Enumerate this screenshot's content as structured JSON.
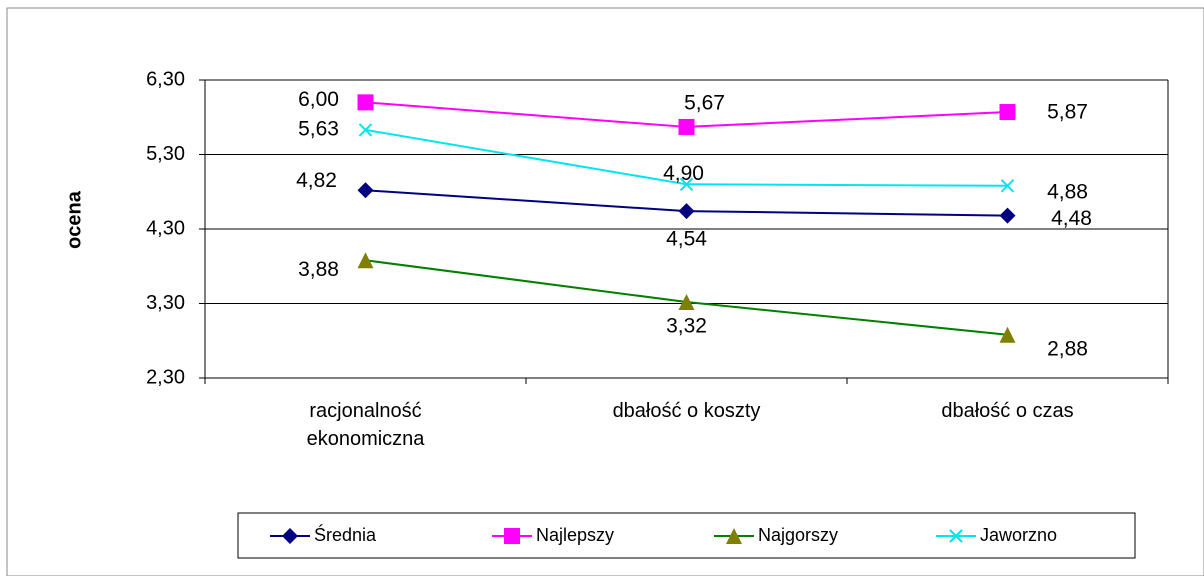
{
  "chart_data": {
    "type": "line",
    "y_label": "ocena",
    "categories": [
      "racjonalność\nekonomiczna",
      "dbałość o koszty",
      "dbałość o czas"
    ],
    "ylim": [
      2.3,
      6.3
    ],
    "yticks": [
      {
        "value": 2.3,
        "label": "2,30"
      },
      {
        "value": 3.3,
        "label": "3,30"
      },
      {
        "value": 4.3,
        "label": "4,30"
      },
      {
        "value": 5.3,
        "label": "5,30"
      },
      {
        "value": 6.3,
        "label": "6,30"
      }
    ],
    "grid": true,
    "legend": "bottom",
    "series": [
      {
        "name": "Średnia",
        "color": "#000080",
        "marker": "diamond",
        "marker_color": "#000080",
        "values": [
          4.82,
          4.54,
          4.48
        ],
        "value_labels": [
          "4,82",
          "4,54",
          "4,48"
        ]
      },
      {
        "name": "Najlepszy",
        "color": "#ff00ff",
        "marker": "square",
        "marker_color": "#ff00ff",
        "values": [
          6.0,
          5.67,
          5.87
        ],
        "value_labels": [
          "6,00",
          "5,67",
          "5,87"
        ]
      },
      {
        "name": "Najgorszy",
        "color": "#008000",
        "marker": "triangle",
        "marker_color": "#808000",
        "values": [
          3.88,
          3.32,
          2.88
        ],
        "value_labels": [
          "3,88",
          "3,32",
          "2,88"
        ]
      },
      {
        "name": "Jaworzno",
        "color": "#00e5ee",
        "marker": "x",
        "marker_color": "#00e5ee",
        "values": [
          5.63,
          4.9,
          4.88
        ],
        "value_labels": [
          "5,63",
          "4,90",
          "4,88"
        ]
      }
    ]
  }
}
